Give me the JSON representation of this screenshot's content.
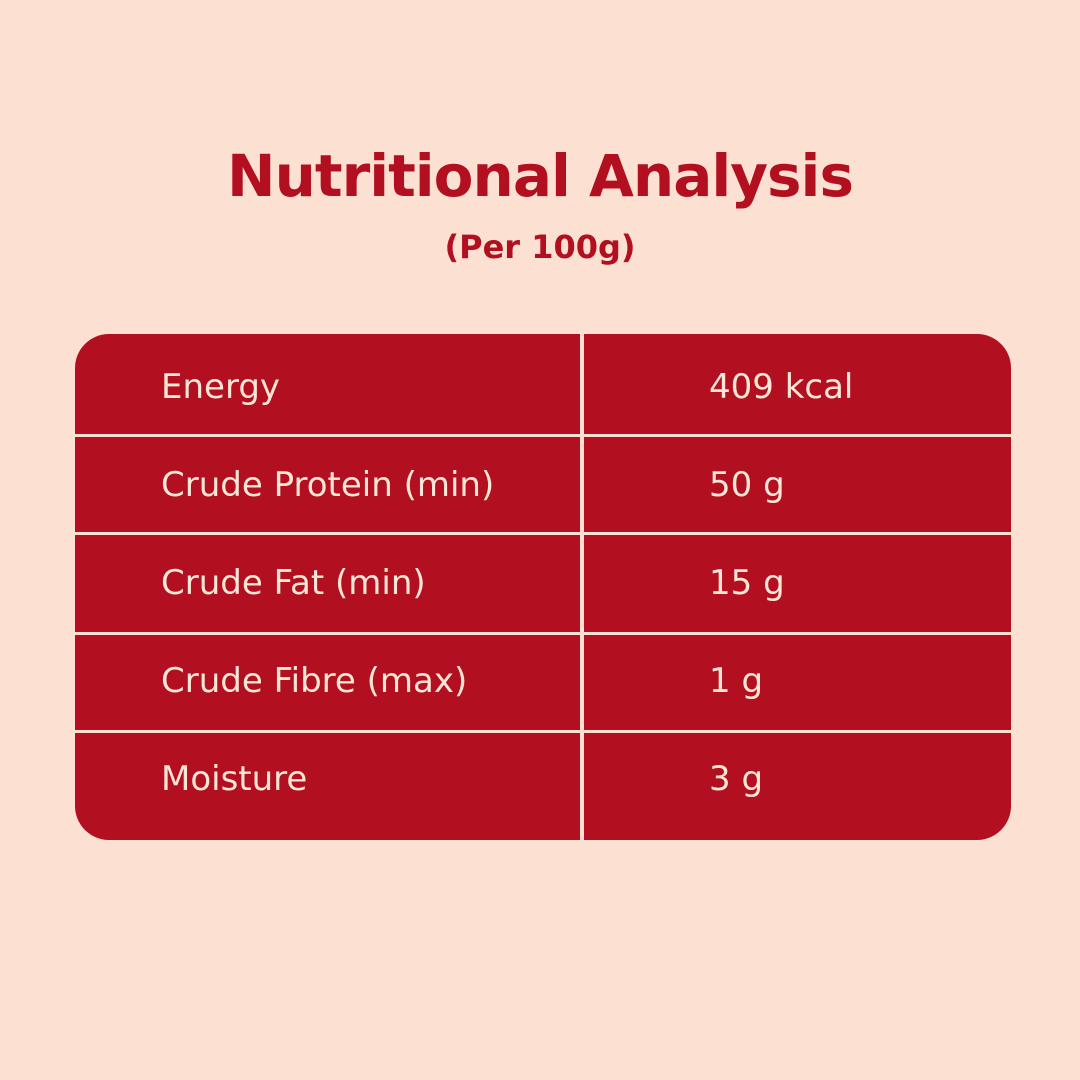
{
  "header": {
    "title": "Nutritional Analysis",
    "subtitle": "(Per 100g)"
  },
  "table": {
    "rows": [
      [
        "Energy",
        "409 kcal"
      ],
      [
        "Crude Protein (min)",
        "50 g"
      ],
      [
        "Crude Fat (min)",
        "15 g"
      ],
      [
        "Crude Fibre (max)",
        "1 g"
      ],
      [
        "Moisture",
        "3 g"
      ]
    ]
  }
}
